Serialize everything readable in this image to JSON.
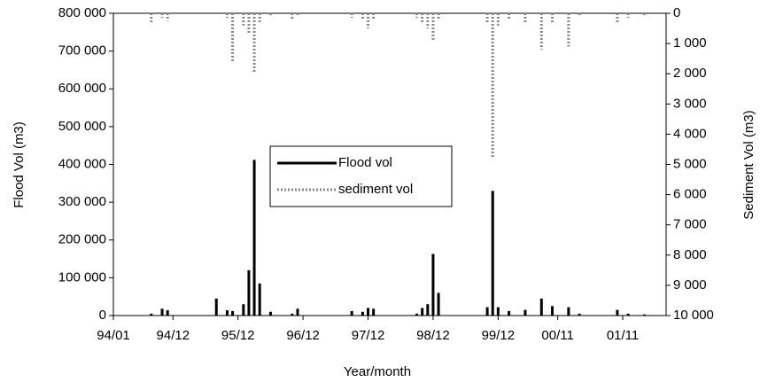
{
  "chart_data": {
    "type": "spike",
    "xlabel": "Year/month",
    "ylabel": "Flood Vol (m3)",
    "y2label": "Sediment Vol (m3)",
    "x": [
      "94/08",
      "94/10",
      "94/11",
      "95/08",
      "95/10",
      "95/11",
      "96/01",
      "96/02",
      "96/03",
      "96/04",
      "96/06",
      "96/10",
      "96/11",
      "97/09",
      "97/11",
      "97/12",
      "98/01",
      "98/09",
      "98/10",
      "98/11",
      "98/12",
      "99/01",
      "99/10",
      "99/11",
      "99/12",
      "00/02",
      "00/05",
      "00/08",
      "00/10",
      "01/01",
      "01/03",
      "01/10",
      "01/12",
      "02/03"
    ],
    "series": [
      {
        "name": "Flood vol",
        "color": "#000000",
        "values": [
          5000,
          18000,
          14000,
          45000,
          14000,
          12000,
          30000,
          120000,
          412000,
          85000,
          10000,
          5000,
          18000,
          12000,
          10000,
          20000,
          18000,
          5000,
          20000,
          30000,
          163000,
          60000,
          22000,
          330000,
          22000,
          12000,
          15000,
          45000,
          25000,
          22000,
          5000,
          15000,
          5000,
          3000
        ]
      },
      {
        "name": "sediment vol",
        "color": "#888888",
        "axis": "y2",
        "values": [
          300,
          150,
          250,
          null,
          150,
          1600,
          400,
          700,
          1950,
          300,
          100,
          200,
          100,
          150,
          200,
          500,
          200,
          150,
          300,
          500,
          900,
          200,
          300,
          4800,
          400,
          200,
          300,
          1200,
          300,
          1100,
          100,
          300,
          150,
          100
        ]
      }
    ],
    "xlim": [
      "94/01",
      "02/07"
    ],
    "xticks": [
      "94/01",
      "94/12",
      "95/12",
      "96/12",
      "97/12",
      "98/12",
      "99/12",
      "00/11",
      "01/11"
    ],
    "ylim": [
      0,
      800000
    ],
    "yticks": [
      0,
      {
        "value": 100000,
        "label": "100 000"
      },
      {
        "value": 200000,
        "label": "200 000"
      },
      {
        "value": 300000,
        "label": "300 000"
      },
      {
        "value": 400000,
        "label": "400 000"
      },
      {
        "value": 500000,
        "label": "500 000"
      },
      {
        "value": 600000,
        "label": "600 000"
      },
      {
        "value": 700000,
        "label": "700 000"
      },
      {
        "value": 800000,
        "label": "800 000"
      }
    ],
    "y2lim": [
      0,
      10000
    ],
    "y2_inverted": true,
    "y2ticks": [
      0,
      {
        "value": 1000,
        "label": "1 000"
      },
      {
        "value": 2000,
        "label": "2 000"
      },
      {
        "value": 3000,
        "label": "3 000"
      },
      {
        "value": 4000,
        "label": "4 000"
      },
      {
        "value": 5000,
        "label": "5 000"
      },
      {
        "value": 6000,
        "label": "6 000"
      },
      {
        "value": 7000,
        "label": "7 000"
      },
      {
        "value": 8000,
        "label": "8 000"
      },
      {
        "value": 9000,
        "label": "9 000"
      },
      {
        "value": 10000,
        "label": "10 000"
      }
    ],
    "legend": "center"
  }
}
